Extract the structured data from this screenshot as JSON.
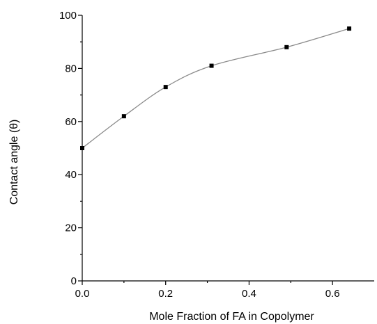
{
  "chart_data": {
    "type": "scatter",
    "title": "",
    "xlabel": "Mole Fraction of FA in Copolymer",
    "ylabel": "Contact angle (θ)",
    "xlim": [
      0.0,
      0.7
    ],
    "ylim": [
      0,
      100
    ],
    "x_ticks": [
      0.0,
      0.2,
      0.4,
      0.6
    ],
    "x_tick_labels": [
      "0.0",
      "0.2",
      "0.4",
      "0.6"
    ],
    "y_ticks": [
      0,
      20,
      40,
      60,
      80,
      100
    ],
    "y_tick_labels": [
      "0",
      "20",
      "40",
      "60",
      "80",
      "100"
    ],
    "grid": false,
    "legend": "none",
    "series": [
      {
        "marker": "square",
        "color": "#000000",
        "x": [
          0.0,
          0.1,
          0.2,
          0.31,
          0.49,
          0.64
        ],
        "y": [
          50,
          62,
          73,
          81,
          88,
          95
        ]
      }
    ],
    "fit_line": {
      "color": "#8a8a8a",
      "style": "smooth curve through points"
    }
  }
}
